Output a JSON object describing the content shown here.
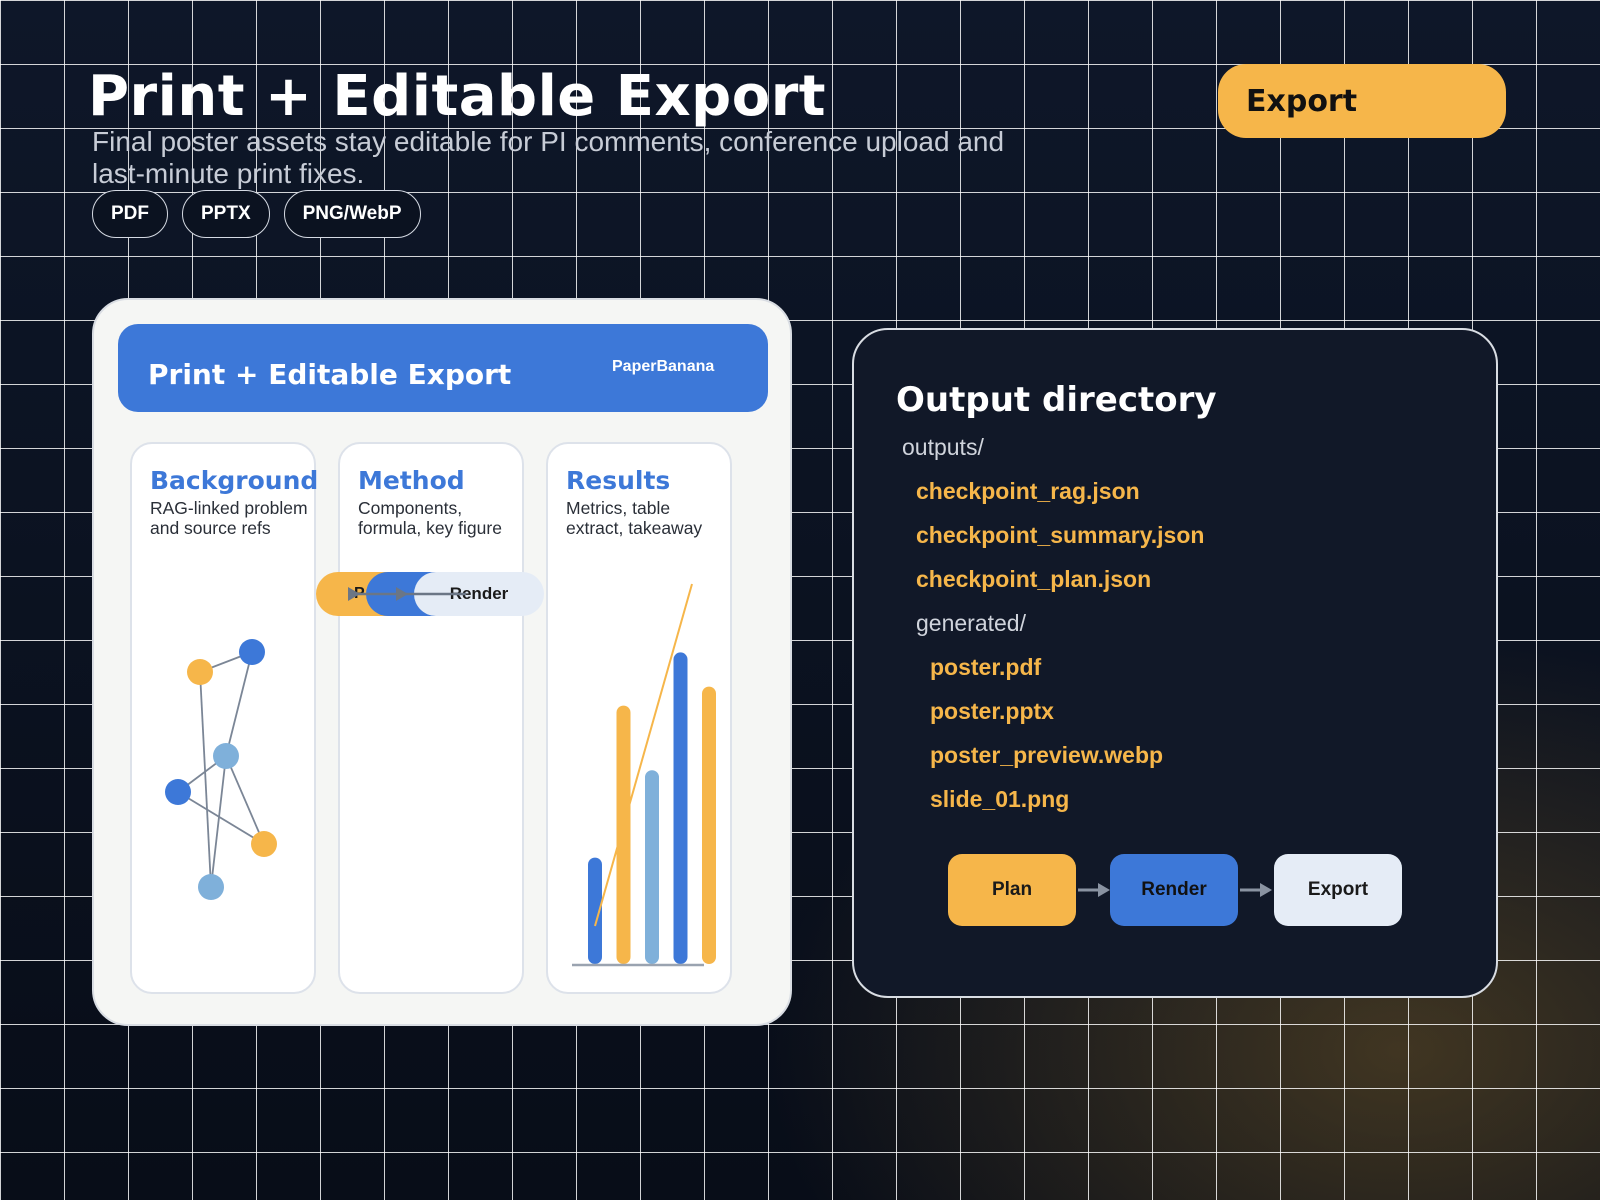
{
  "header": {
    "title": "Print + Editable Export",
    "subtitle": "Final poster assets stay editable for PI comments, conference upload and last-minute print fixes.",
    "export_label": "Export",
    "formats": [
      "PDF",
      "PPTX",
      "PNG/WebP"
    ]
  },
  "poster": {
    "title": "Print + Editable Export",
    "brand": "PaperBanana",
    "panels": [
      {
        "title": "Background",
        "desc": "RAG-linked problem and source refs"
      },
      {
        "title": "Method",
        "desc": "Components, formula, key figure"
      },
      {
        "title": "Results",
        "desc": "Metrics, table extract, takeaway"
      }
    ],
    "method_steps": [
      "P",
      "",
      "Render"
    ]
  },
  "chart_data": {
    "type": "bar",
    "title": "",
    "xlabel": "",
    "ylabel": "",
    "values": [
      28,
      68,
      51,
      82,
      73
    ],
    "bar_colors": [
      "#3d78d8",
      "#f6b64a",
      "#7fb0da",
      "#3d78d8",
      "#f6b64a"
    ],
    "trend_line": [
      [
        0,
        10
      ],
      [
        4,
        100
      ]
    ],
    "ylim": [
      0,
      100
    ],
    "grid": false,
    "legend": "none"
  },
  "output_directory": {
    "title": "Output directory",
    "entries": [
      {
        "label": "outputs/",
        "kind": "folder",
        "depth": 0
      },
      {
        "label": "checkpoint_rag.json",
        "kind": "file",
        "depth": 1
      },
      {
        "label": "checkpoint_summary.json",
        "kind": "file",
        "depth": 1
      },
      {
        "label": "checkpoint_plan.json",
        "kind": "file",
        "depth": 1
      },
      {
        "label": "generated/",
        "kind": "folder",
        "depth": 1
      },
      {
        "label": "poster.pdf",
        "kind": "file",
        "depth": 2
      },
      {
        "label": "poster.pptx",
        "kind": "file",
        "depth": 2
      },
      {
        "label": "poster_preview.webp",
        "kind": "file",
        "depth": 2
      },
      {
        "label": "slide_01.png",
        "kind": "file",
        "depth": 2
      }
    ],
    "steps": [
      "Plan",
      "Render",
      "Export"
    ]
  },
  "colors": {
    "accent_yellow": "#f6b64a",
    "accent_blue": "#3d78d8",
    "accent_light_blue": "#7fb0da",
    "pale": "#e5ecf6"
  }
}
